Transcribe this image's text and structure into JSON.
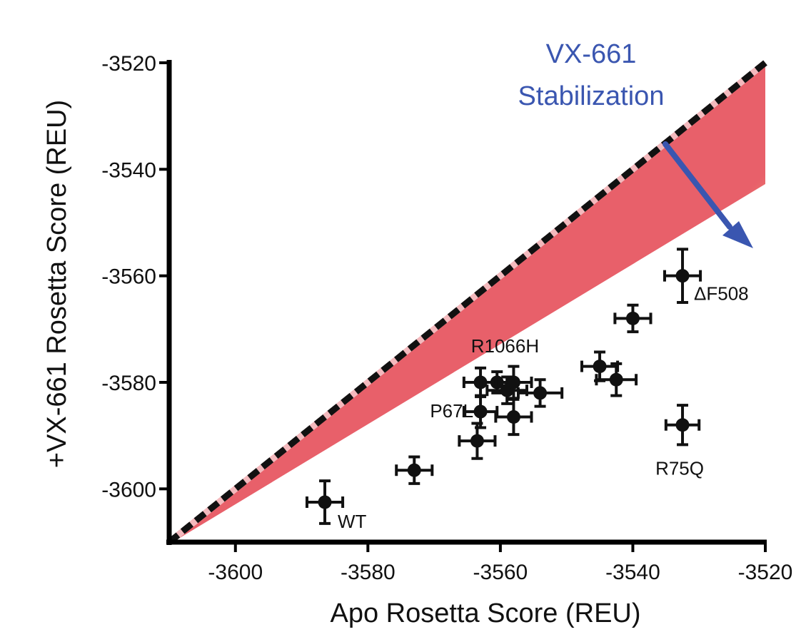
{
  "chart_data": {
    "type": "scatter",
    "xlabel": "Apo Rosetta Score (REU)",
    "ylabel": "+VX-661 Rosetta Score (REU)",
    "xlim": [
      -3610,
      -3520
    ],
    "ylim": [
      -3610,
      -3520
    ],
    "x_ticks": [
      -3600,
      -3580,
      -3560,
      -3540,
      -3520
    ],
    "y_ticks": [
      -3600,
      -3580,
      -3560,
      -3540,
      -3520
    ],
    "x_tick_labels": [
      "-3600",
      "-3580",
      "-3560",
      "-3540",
      "-3520"
    ],
    "y_tick_labels": [
      "-3600",
      "-3580",
      "-3560",
      "-3540",
      "-3520"
    ],
    "reference_line": "y = x (dashed)",
    "shaded_region": "below diagonal, red gradient fading to white",
    "annotation": {
      "line1": "VX-661",
      "line2": "Stabilization"
    },
    "colors": {
      "point": "#111111",
      "shade": "#e8606a",
      "arrow": "#3a56b0",
      "annotation": "#3a56b0",
      "dash_gap": "#f3b9bd"
    },
    "points": [
      {
        "x": -3586.5,
        "y": -3602.5,
        "xerr": 2.7,
        "yerr": 4.0,
        "label": "WT"
      },
      {
        "x": -3573.0,
        "y": -3596.5,
        "xerr": 2.7,
        "yerr": 2.5,
        "label": ""
      },
      {
        "x": -3563.5,
        "y": -3591.0,
        "xerr": 2.7,
        "yerr": 3.3,
        "label": ""
      },
      {
        "x": -3563.0,
        "y": -3585.5,
        "xerr": 2.5,
        "yerr": 3.0,
        "label": "P67L"
      },
      {
        "x": -3558.0,
        "y": -3586.5,
        "xerr": 2.7,
        "yerr": 3.3,
        "label": ""
      },
      {
        "x": -3563.0,
        "y": -3580.0,
        "xerr": 2.5,
        "yerr": 2.7,
        "label": ""
      },
      {
        "x": -3560.5,
        "y": -3580.0,
        "xerr": 2.5,
        "yerr": 2.0,
        "label": ""
      },
      {
        "x": -3559.0,
        "y": -3581.5,
        "xerr": 3.0,
        "yerr": 2.5,
        "label": ""
      },
      {
        "x": -3558.0,
        "y": -3580.0,
        "xerr": 2.7,
        "yerr": 3.0,
        "label": "R1066H"
      },
      {
        "x": -3554.0,
        "y": -3582.0,
        "xerr": 3.3,
        "yerr": 2.5,
        "label": ""
      },
      {
        "x": -3545.0,
        "y": -3577.0,
        "xerr": 2.7,
        "yerr": 2.7,
        "label": ""
      },
      {
        "x": -3542.5,
        "y": -3579.5,
        "xerr": 3.0,
        "yerr": 3.0,
        "label": ""
      },
      {
        "x": -3540.0,
        "y": -3568.0,
        "xerr": 2.7,
        "yerr": 2.5,
        "label": ""
      },
      {
        "x": -3532.5,
        "y": -3560.0,
        "xerr": 2.7,
        "yerr": 5.0,
        "label": "ΔF508"
      },
      {
        "x": -3532.5,
        "y": -3588.0,
        "xerr": 2.5,
        "yerr": 3.7,
        "label": "R75Q"
      }
    ]
  }
}
